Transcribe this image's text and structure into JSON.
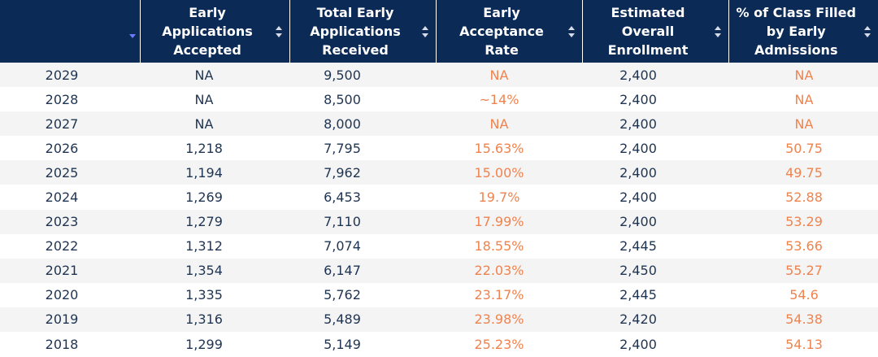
{
  "table": {
    "headers": [
      "",
      "Early Applications Accepted",
      "Total Early Applications Received",
      "Early Acceptance Rate",
      "Estimated Overall Enrollment",
      "% of Class Filled by Early Admissions"
    ],
    "sorted_column": "year",
    "sort_direction": "descending",
    "rows": [
      {
        "year": "2029",
        "accepted": "NA",
        "received": "9,500",
        "rate": "NA",
        "enrollment": "2,400",
        "pct_filled": "NA"
      },
      {
        "year": "2028",
        "accepted": "NA",
        "received": "8,500",
        "rate": "~14%",
        "enrollment": "2,400",
        "pct_filled": "NA"
      },
      {
        "year": "2027",
        "accepted": "NA",
        "received": "8,000",
        "rate": "NA",
        "enrollment": "2,400",
        "pct_filled": "NA"
      },
      {
        "year": "2026",
        "accepted": "1,218",
        "received": "7,795",
        "rate": "15.63%",
        "enrollment": "2,400",
        "pct_filled": "50.75"
      },
      {
        "year": "2025",
        "accepted": "1,194",
        "received": "7,962",
        "rate": "15.00%",
        "enrollment": "2,400",
        "pct_filled": "49.75"
      },
      {
        "year": "2024",
        "accepted": "1,269",
        "received": "6,453",
        "rate": "19.7%",
        "enrollment": "2,400",
        "pct_filled": "52.88"
      },
      {
        "year": "2023",
        "accepted": "1,279",
        "received": "7,110",
        "rate": "17.99%",
        "enrollment": "2,400",
        "pct_filled": "53.29"
      },
      {
        "year": "2022",
        "accepted": "1,312",
        "received": "7,074",
        "rate": "18.55%",
        "enrollment": "2,445",
        "pct_filled": "53.66"
      },
      {
        "year": "2021",
        "accepted": "1,354",
        "received": "6,147",
        "rate": "22.03%",
        "enrollment": "2,450",
        "pct_filled": "55.27"
      },
      {
        "year": "2020",
        "accepted": "1,335",
        "received": "5,762",
        "rate": "23.17%",
        "enrollment": "2,445",
        "pct_filled": "54.6"
      },
      {
        "year": "2019",
        "accepted": "1,316",
        "received": "5,489",
        "rate": "23.98%",
        "enrollment": "2,420",
        "pct_filled": "54.38"
      },
      {
        "year": "2018",
        "accepted": "1,299",
        "received": "5,149",
        "rate": "25.23%",
        "enrollment": "2,400",
        "pct_filled": "54.13"
      }
    ]
  },
  "colors": {
    "header_bg": "#0b2a55",
    "text_dark": "#1e3452",
    "accent_orange": "#f0834d",
    "row_alt": "#f4f4f4",
    "sort_active": "#6c7bff"
  },
  "icons": {
    "sort_toggle": "sort-up-down-icon",
    "sort_active": "sort-descending-icon"
  }
}
